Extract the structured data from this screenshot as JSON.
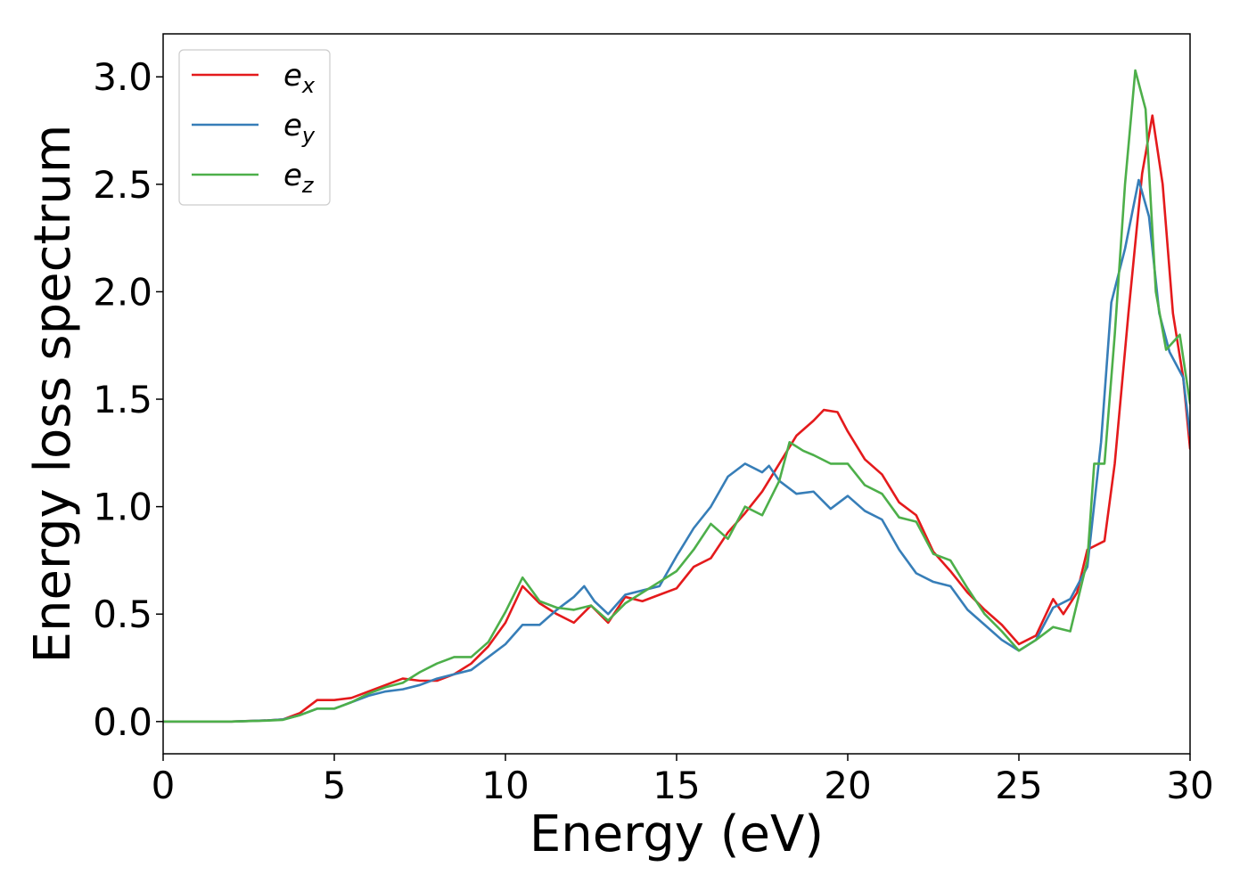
{
  "chart_data": {
    "type": "line",
    "title": "",
    "xlabel": "Energy (eV)",
    "ylabel": "Energy loss spectrum",
    "xlim": [
      0,
      30
    ],
    "ylim": [
      -0.15,
      3.2
    ],
    "xticks": [
      0,
      5,
      10,
      15,
      20,
      25,
      30
    ],
    "xtick_labels": [
      "0",
      "5",
      "10",
      "15",
      "20",
      "25",
      "30"
    ],
    "yticks": [
      0.0,
      0.5,
      1.0,
      1.5,
      2.0,
      2.5,
      3.0
    ],
    "ytick_labels": [
      "0.0",
      "0.5",
      "1.0",
      "1.5",
      "2.0",
      "2.5",
      "3.0"
    ],
    "grid": false,
    "legend": {
      "placement": "top-left"
    },
    "series": [
      {
        "name": "e_x",
        "label_main": "e",
        "label_sub": "x",
        "color": "#e41a1c",
        "points": [
          [
            0,
            0
          ],
          [
            2,
            0
          ],
          [
            3,
            0.005
          ],
          [
            3.5,
            0.01
          ],
          [
            4,
            0.04
          ],
          [
            4.5,
            0.1
          ],
          [
            5,
            0.1
          ],
          [
            5.5,
            0.11
          ],
          [
            6,
            0.14
          ],
          [
            6.5,
            0.17
          ],
          [
            7,
            0.2
          ],
          [
            7.5,
            0.19
          ],
          [
            8,
            0.19
          ],
          [
            8.5,
            0.22
          ],
          [
            9,
            0.27
          ],
          [
            9.5,
            0.35
          ],
          [
            10,
            0.46
          ],
          [
            10.5,
            0.63
          ],
          [
            11,
            0.55
          ],
          [
            11.5,
            0.5
          ],
          [
            12,
            0.46
          ],
          [
            12.5,
            0.54
          ],
          [
            13,
            0.46
          ],
          [
            13.5,
            0.58
          ],
          [
            14,
            0.56
          ],
          [
            14.5,
            0.59
          ],
          [
            15,
            0.62
          ],
          [
            15.5,
            0.72
          ],
          [
            16,
            0.76
          ],
          [
            16.5,
            0.88
          ],
          [
            17,
            0.97
          ],
          [
            17.5,
            1.07
          ],
          [
            18,
            1.2
          ],
          [
            18.5,
            1.33
          ],
          [
            19,
            1.4
          ],
          [
            19.3,
            1.45
          ],
          [
            19.7,
            1.44
          ],
          [
            20,
            1.35
          ],
          [
            20.5,
            1.22
          ],
          [
            21,
            1.15
          ],
          [
            21.5,
            1.02
          ],
          [
            22,
            0.96
          ],
          [
            22.5,
            0.79
          ],
          [
            23,
            0.7
          ],
          [
            23.5,
            0.6
          ],
          [
            24,
            0.52
          ],
          [
            24.5,
            0.45
          ],
          [
            25,
            0.36
          ],
          [
            25.5,
            0.4
          ],
          [
            26,
            0.57
          ],
          [
            26.3,
            0.5
          ],
          [
            26.7,
            0.6
          ],
          [
            27,
            0.8
          ],
          [
            27.5,
            0.84
          ],
          [
            27.8,
            1.2
          ],
          [
            28.2,
            1.9
          ],
          [
            28.6,
            2.55
          ],
          [
            28.9,
            2.82
          ],
          [
            29.2,
            2.5
          ],
          [
            29.5,
            1.9
          ],
          [
            29.8,
            1.6
          ],
          [
            30,
            1.27
          ]
        ]
      },
      {
        "name": "e_y",
        "label_main": "e",
        "label_sub": "y",
        "color": "#377eb8",
        "points": [
          [
            0,
            0
          ],
          [
            2,
            0
          ],
          [
            3,
            0.005
          ],
          [
            3.5,
            0.01
          ],
          [
            4,
            0.03
          ],
          [
            4.5,
            0.06
          ],
          [
            5,
            0.06
          ],
          [
            5.5,
            0.09
          ],
          [
            6,
            0.12
          ],
          [
            6.5,
            0.14
          ],
          [
            7,
            0.15
          ],
          [
            7.5,
            0.17
          ],
          [
            8,
            0.2
          ],
          [
            8.5,
            0.22
          ],
          [
            9,
            0.24
          ],
          [
            9.5,
            0.3
          ],
          [
            10,
            0.36
          ],
          [
            10.5,
            0.45
          ],
          [
            11,
            0.45
          ],
          [
            11.5,
            0.52
          ],
          [
            12,
            0.58
          ],
          [
            12.3,
            0.63
          ],
          [
            12.6,
            0.56
          ],
          [
            13,
            0.5
          ],
          [
            13.5,
            0.59
          ],
          [
            14,
            0.61
          ],
          [
            14.5,
            0.63
          ],
          [
            15,
            0.77
          ],
          [
            15.5,
            0.9
          ],
          [
            16,
            1.0
          ],
          [
            16.5,
            1.14
          ],
          [
            17,
            1.2
          ],
          [
            17.5,
            1.16
          ],
          [
            17.7,
            1.19
          ],
          [
            18,
            1.12
          ],
          [
            18.5,
            1.06
          ],
          [
            19,
            1.07
          ],
          [
            19.5,
            0.99
          ],
          [
            20,
            1.05
          ],
          [
            20.5,
            0.98
          ],
          [
            21,
            0.94
          ],
          [
            21.5,
            0.8
          ],
          [
            22,
            0.69
          ],
          [
            22.5,
            0.65
          ],
          [
            23,
            0.63
          ],
          [
            23.5,
            0.52
          ],
          [
            24,
            0.45
          ],
          [
            24.5,
            0.38
          ],
          [
            25,
            0.33
          ],
          [
            25.5,
            0.38
          ],
          [
            26,
            0.53
          ],
          [
            26.5,
            0.57
          ],
          [
            27,
            0.72
          ],
          [
            27.4,
            1.3
          ],
          [
            27.7,
            1.95
          ],
          [
            28.1,
            2.2
          ],
          [
            28.5,
            2.52
          ],
          [
            28.8,
            2.35
          ],
          [
            29.1,
            1.9
          ],
          [
            29.4,
            1.72
          ],
          [
            29.8,
            1.6
          ],
          [
            30,
            1.33
          ]
        ]
      },
      {
        "name": "e_z",
        "label_main": "e",
        "label_sub": "z",
        "color": "#4daf4a",
        "points": [
          [
            0,
            0
          ],
          [
            2,
            0
          ],
          [
            3,
            0.004
          ],
          [
            3.5,
            0.008
          ],
          [
            4,
            0.03
          ],
          [
            4.5,
            0.06
          ],
          [
            5,
            0.06
          ],
          [
            5.5,
            0.09
          ],
          [
            6,
            0.13
          ],
          [
            6.5,
            0.16
          ],
          [
            7,
            0.18
          ],
          [
            7.5,
            0.23
          ],
          [
            8,
            0.27
          ],
          [
            8.5,
            0.3
          ],
          [
            9,
            0.3
          ],
          [
            9.5,
            0.37
          ],
          [
            10,
            0.51
          ],
          [
            10.5,
            0.67
          ],
          [
            11,
            0.56
          ],
          [
            11.5,
            0.53
          ],
          [
            12,
            0.52
          ],
          [
            12.5,
            0.54
          ],
          [
            13,
            0.47
          ],
          [
            13.5,
            0.55
          ],
          [
            14,
            0.6
          ],
          [
            14.5,
            0.65
          ],
          [
            15,
            0.7
          ],
          [
            15.5,
            0.8
          ],
          [
            16,
            0.92
          ],
          [
            16.5,
            0.85
          ],
          [
            17,
            1.0
          ],
          [
            17.5,
            0.96
          ],
          [
            18,
            1.12
          ],
          [
            18.3,
            1.3
          ],
          [
            18.7,
            1.26
          ],
          [
            19,
            1.24
          ],
          [
            19.5,
            1.2
          ],
          [
            20,
            1.2
          ],
          [
            20.5,
            1.1
          ],
          [
            21,
            1.06
          ],
          [
            21.5,
            0.95
          ],
          [
            22,
            0.93
          ],
          [
            22.5,
            0.78
          ],
          [
            23,
            0.75
          ],
          [
            23.5,
            0.62
          ],
          [
            24,
            0.5
          ],
          [
            24.5,
            0.42
          ],
          [
            25,
            0.33
          ],
          [
            25.5,
            0.38
          ],
          [
            26,
            0.44
          ],
          [
            26.5,
            0.42
          ],
          [
            27,
            0.75
          ],
          [
            27.2,
            1.2
          ],
          [
            27.5,
            1.2
          ],
          [
            27.8,
            1.8
          ],
          [
            28.1,
            2.5
          ],
          [
            28.4,
            3.03
          ],
          [
            28.7,
            2.85
          ],
          [
            29,
            2.0
          ],
          [
            29.3,
            1.73
          ],
          [
            29.7,
            1.8
          ],
          [
            30,
            1.48
          ]
        ]
      }
    ]
  }
}
